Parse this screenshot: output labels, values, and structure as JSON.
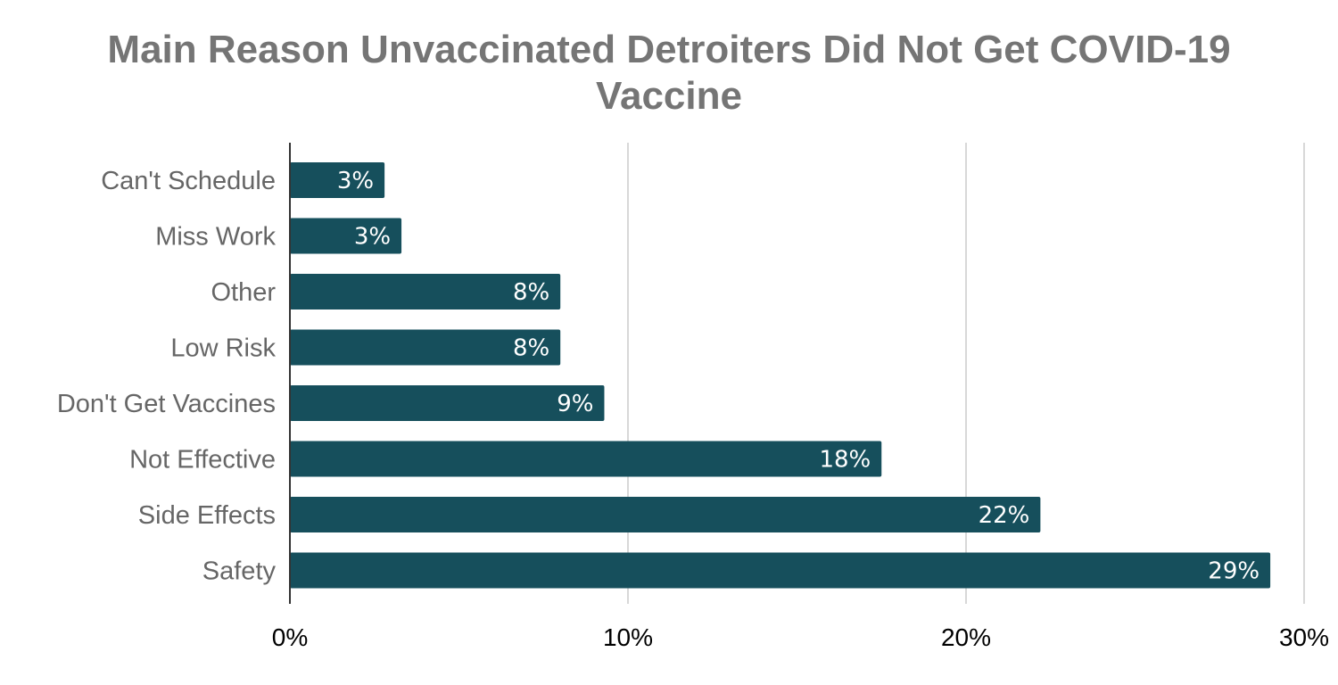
{
  "chart_data": {
    "type": "bar",
    "orientation": "horizontal",
    "title_lines": [
      "Main Reason Unvaccinated Detroiters Did Not Get COVID-19",
      "Vaccine"
    ],
    "categories": [
      "Can't Schedule",
      "Miss Work",
      "Other",
      "Low Risk",
      "Don't Get Vaccines",
      "Not Effective",
      "Side Effects",
      "Safety"
    ],
    "values": [
      2.8,
      3.3,
      8.0,
      8.0,
      9.3,
      17.5,
      22.2,
      29.0
    ],
    "data_labels": [
      "3%",
      "3%",
      "8%",
      "8%",
      "9%",
      "18%",
      "22%",
      "29%"
    ],
    "xlim": [
      0,
      30
    ],
    "xticks": [
      0,
      10,
      20,
      30
    ],
    "xtick_labels": [
      "0%",
      "10%",
      "20%",
      "30%"
    ],
    "grid": "vertical",
    "legend": "none",
    "bar_color": "#164f5c",
    "grid_color": "#cccccc",
    "axis_color": "#333333"
  }
}
